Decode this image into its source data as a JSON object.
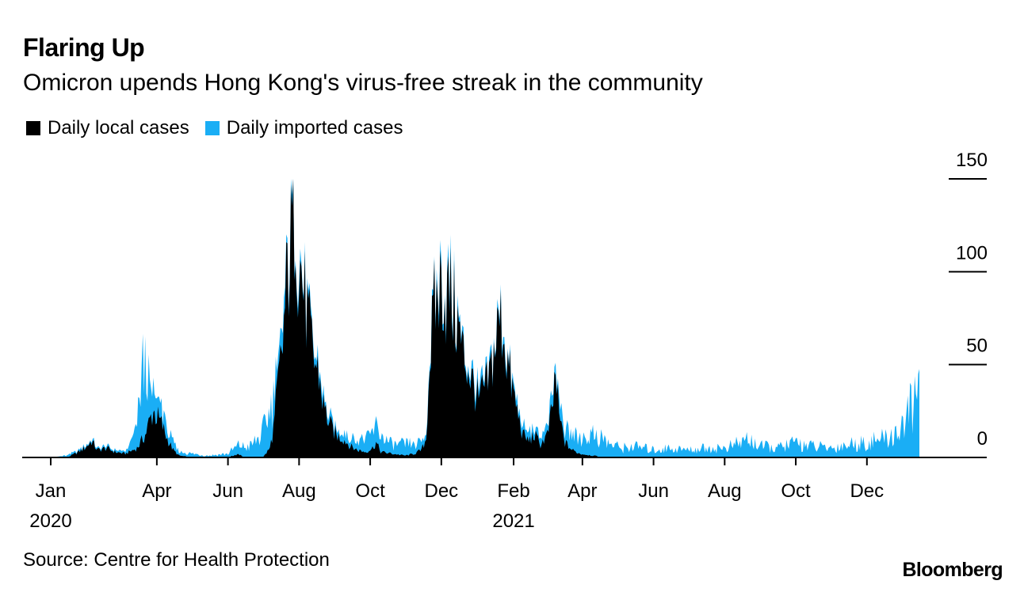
{
  "title": "Flaring Up",
  "subtitle": "Omicron upends Hong Kong's virus-free streak in the community",
  "source": "Source: Centre for Health Protection",
  "brand": "Bloomberg",
  "colors": {
    "local": "#000000",
    "imported": "#1aaef5",
    "axis": "#000000"
  },
  "chart_data": {
    "type": "area",
    "stacked": true,
    "legend": [
      {
        "name": "Daily local cases",
        "color": "#000000"
      },
      {
        "name": "Daily imported cases",
        "color": "#1aaef5"
      }
    ],
    "xlim": [
      "2020-01-01",
      "2022-01-15"
    ],
    "ylim": [
      0,
      150
    ],
    "yticks": [
      0,
      50,
      100,
      150
    ],
    "xticks": [
      {
        "date": "2020-01-01",
        "label": "Jan",
        "year": "2020"
      },
      {
        "date": "2020-04-01",
        "label": "Apr",
        "year": ""
      },
      {
        "date": "2020-06-01",
        "label": "Jun",
        "year": ""
      },
      {
        "date": "2020-08-01",
        "label": "Aug",
        "year": ""
      },
      {
        "date": "2020-10-01",
        "label": "Oct",
        "year": ""
      },
      {
        "date": "2020-12-01",
        "label": "Dec",
        "year": ""
      },
      {
        "date": "2021-02-01",
        "label": "Feb",
        "year": "2021"
      },
      {
        "date": "2021-04-01",
        "label": "Apr",
        "year": ""
      },
      {
        "date": "2021-06-01",
        "label": "Jun",
        "year": ""
      },
      {
        "date": "2021-08-01",
        "label": "Aug",
        "year": ""
      },
      {
        "date": "2021-10-01",
        "label": "Oct",
        "year": ""
      },
      {
        "date": "2021-12-01",
        "label": "Dec",
        "year": ""
      }
    ],
    "series": [
      {
        "name": "Daily local cases",
        "points": [
          [
            "2020-01-01",
            0
          ],
          [
            "2020-01-15",
            0
          ],
          [
            "2020-01-25",
            3
          ],
          [
            "2020-02-01",
            6
          ],
          [
            "2020-02-05",
            9
          ],
          [
            "2020-02-10",
            4
          ],
          [
            "2020-02-18",
            5
          ],
          [
            "2020-02-25",
            3
          ],
          [
            "2020-03-05",
            2
          ],
          [
            "2020-03-15",
            5
          ],
          [
            "2020-03-22",
            12
          ],
          [
            "2020-03-26",
            20
          ],
          [
            "2020-03-29",
            25
          ],
          [
            "2020-04-01",
            22
          ],
          [
            "2020-04-05",
            18
          ],
          [
            "2020-04-10",
            10
          ],
          [
            "2020-04-15",
            4
          ],
          [
            "2020-04-20",
            1
          ],
          [
            "2020-05-01",
            0
          ],
          [
            "2020-06-01",
            0
          ],
          [
            "2020-06-10",
            2
          ],
          [
            "2020-06-15",
            0
          ],
          [
            "2020-07-01",
            0
          ],
          [
            "2020-07-07",
            5
          ],
          [
            "2020-07-10",
            15
          ],
          [
            "2020-07-14",
            40
          ],
          [
            "2020-07-18",
            60
          ],
          [
            "2020-07-22",
            100
          ],
          [
            "2020-07-25",
            115
          ],
          [
            "2020-07-27",
            132
          ],
          [
            "2020-07-29",
            140
          ],
          [
            "2020-07-31",
            110
          ],
          [
            "2020-08-03",
            100
          ],
          [
            "2020-08-06",
            85
          ],
          [
            "2020-08-10",
            68
          ],
          [
            "2020-08-14",
            52
          ],
          [
            "2020-08-18",
            45
          ],
          [
            "2020-08-22",
            28
          ],
          [
            "2020-08-27",
            18
          ],
          [
            "2020-09-02",
            12
          ],
          [
            "2020-09-08",
            10
          ],
          [
            "2020-09-14",
            6
          ],
          [
            "2020-09-20",
            4
          ],
          [
            "2020-09-27",
            3
          ],
          [
            "2020-10-03",
            5
          ],
          [
            "2020-10-06",
            8
          ],
          [
            "2020-10-10",
            3
          ],
          [
            "2020-10-20",
            2
          ],
          [
            "2020-10-31",
            1
          ],
          [
            "2020-11-08",
            2
          ],
          [
            "2020-11-14",
            4
          ],
          [
            "2020-11-18",
            10
          ],
          [
            "2020-11-20",
            40
          ],
          [
            "2020-11-22",
            60
          ],
          [
            "2020-11-25",
            80
          ],
          [
            "2020-11-28",
            88
          ],
          [
            "2020-12-02",
            95
          ],
          [
            "2020-12-05",
            85
          ],
          [
            "2020-12-08",
            90
          ],
          [
            "2020-12-11",
            82
          ],
          [
            "2020-12-14",
            75
          ],
          [
            "2020-12-17",
            65
          ],
          [
            "2020-12-20",
            55
          ],
          [
            "2020-12-24",
            48
          ],
          [
            "2020-12-28",
            40
          ],
          [
            "2021-01-02",
            30
          ],
          [
            "2021-01-05",
            35
          ],
          [
            "2021-01-10",
            40
          ],
          [
            "2021-01-16",
            60
          ],
          [
            "2021-01-20",
            75
          ],
          [
            "2021-01-23",
            70
          ],
          [
            "2021-01-26",
            55
          ],
          [
            "2021-01-30",
            40
          ],
          [
            "2021-02-04",
            25
          ],
          [
            "2021-02-09",
            12
          ],
          [
            "2021-02-14",
            9
          ],
          [
            "2021-02-19",
            12
          ],
          [
            "2021-02-24",
            7
          ],
          [
            "2021-03-02",
            12
          ],
          [
            "2021-03-06",
            25
          ],
          [
            "2021-03-09",
            45
          ],
          [
            "2021-03-12",
            22
          ],
          [
            "2021-03-17",
            8
          ],
          [
            "2021-03-23",
            4
          ],
          [
            "2021-03-30",
            2
          ],
          [
            "2021-04-10",
            1
          ],
          [
            "2021-04-20",
            0
          ],
          [
            "2022-01-15",
            0
          ]
        ]
      },
      {
        "name": "Daily imported cases",
        "points": [
          [
            "2020-01-01",
            0
          ],
          [
            "2020-01-15",
            1
          ],
          [
            "2020-02-01",
            1
          ],
          [
            "2020-02-20",
            1
          ],
          [
            "2020-03-05",
            1
          ],
          [
            "2020-03-10",
            5
          ],
          [
            "2020-03-14",
            10
          ],
          [
            "2020-03-17",
            22
          ],
          [
            "2020-03-20",
            40
          ],
          [
            "2020-03-23",
            35
          ],
          [
            "2020-03-26",
            15
          ],
          [
            "2020-03-29",
            12
          ],
          [
            "2020-04-01",
            10
          ],
          [
            "2020-04-06",
            8
          ],
          [
            "2020-04-12",
            5
          ],
          [
            "2020-04-20",
            2
          ],
          [
            "2020-05-01",
            2
          ],
          [
            "2020-05-15",
            1
          ],
          [
            "2020-06-01",
            2
          ],
          [
            "2020-06-10",
            5
          ],
          [
            "2020-06-20",
            6
          ],
          [
            "2020-06-30",
            12
          ],
          [
            "2020-07-04",
            18
          ],
          [
            "2020-07-08",
            20
          ],
          [
            "2020-07-14",
            10
          ],
          [
            "2020-07-22",
            6
          ],
          [
            "2020-07-29",
            5
          ],
          [
            "2020-08-05",
            3
          ],
          [
            "2020-08-20",
            4
          ],
          [
            "2020-09-01",
            3
          ],
          [
            "2020-09-15",
            5
          ],
          [
            "2020-10-01",
            8
          ],
          [
            "2020-10-06",
            10
          ],
          [
            "2020-10-12",
            8
          ],
          [
            "2020-10-20",
            5
          ],
          [
            "2020-11-01",
            6
          ],
          [
            "2020-11-14",
            4
          ],
          [
            "2020-11-20",
            3
          ],
          [
            "2020-12-05",
            5
          ],
          [
            "2020-12-20",
            3
          ],
          [
            "2021-01-05",
            4
          ],
          [
            "2021-01-20",
            3
          ],
          [
            "2021-02-05",
            4
          ],
          [
            "2021-02-19",
            4
          ],
          [
            "2021-03-01",
            5
          ],
          [
            "2021-03-12",
            6
          ],
          [
            "2021-03-20",
            8
          ],
          [
            "2021-04-01",
            9
          ],
          [
            "2021-04-05",
            10
          ],
          [
            "2021-04-12",
            12
          ],
          [
            "2021-04-18",
            10
          ],
          [
            "2021-04-25",
            7
          ],
          [
            "2021-05-05",
            5
          ],
          [
            "2021-05-15",
            6
          ],
          [
            "2021-06-01",
            4
          ],
          [
            "2021-06-15",
            5
          ],
          [
            "2021-07-01",
            4
          ],
          [
            "2021-07-15",
            5
          ],
          [
            "2021-08-01",
            5
          ],
          [
            "2021-08-15",
            8
          ],
          [
            "2021-08-20",
            10
          ],
          [
            "2021-09-01",
            6
          ],
          [
            "2021-09-15",
            5
          ],
          [
            "2021-10-01",
            8
          ],
          [
            "2021-10-15",
            6
          ],
          [
            "2021-11-01",
            5
          ],
          [
            "2021-11-15",
            7
          ],
          [
            "2021-12-01",
            8
          ],
          [
            "2021-12-15",
            10
          ],
          [
            "2021-12-25",
            12
          ],
          [
            "2022-01-01",
            18
          ],
          [
            "2022-01-05",
            22
          ],
          [
            "2022-01-10",
            30
          ],
          [
            "2022-01-13",
            35
          ],
          [
            "2022-01-15",
            33
          ]
        ]
      }
    ]
  }
}
